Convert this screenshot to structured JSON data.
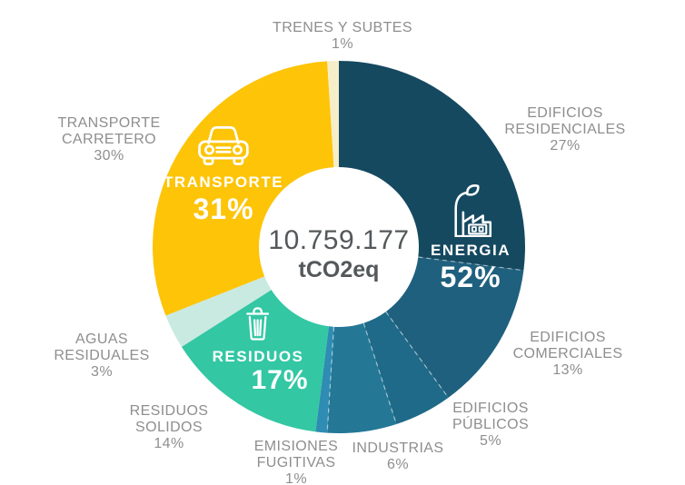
{
  "page": {
    "background": "#ffffff"
  },
  "chart_data": {
    "type": "pie",
    "subtype": "donut",
    "direction": "clockwise",
    "start_angle_deg": 0,
    "label_color": "#8e8e8e",
    "center_label": {
      "value": "10.759.177",
      "unit": "tCO2eq"
    },
    "groups": [
      {
        "name": "ENERGIA",
        "pct": "52%",
        "value": 52,
        "icon": "factory-leaf-icon",
        "label_text_color": "#ffffff",
        "dashed_separators": true,
        "segments": [
          {
            "label": "EDIFICIOS RESIDENCIALES",
            "pct": "27%",
            "value": 27,
            "color": "#154960"
          },
          {
            "label": "EDIFICIOS COMERCIALES",
            "pct": "13%",
            "value": 13,
            "color": "#1f607e"
          },
          {
            "label": "EDIFICIOS PÚBLICOS",
            "pct": "5%",
            "value": 5,
            "color": "#1e6a88"
          },
          {
            "label": "INDUSTRIAS",
            "pct": "6%",
            "value": 6,
            "color": "#247896"
          },
          {
            "label": "EMISIONES FUGITIVAS",
            "pct": "1%",
            "value": 1,
            "color": "#2f8cb2"
          }
        ]
      },
      {
        "name": "RESIDUOS",
        "pct": "17%",
        "value": 17,
        "icon": "trash-icon",
        "label_text_color": "#ffffff",
        "dashed_separators": false,
        "segments": [
          {
            "label": "RESIDUOS SOLIDOS",
            "pct": "14%",
            "value": 14,
            "color": "#33c7a4"
          },
          {
            "label": "AGUAS RESIDUALES",
            "pct": "3%",
            "value": 3,
            "color": "#c9eae0"
          }
        ]
      },
      {
        "name": "TRANSPORTE",
        "pct": "31%",
        "value": 31,
        "icon": "car-icon",
        "label_text_color": "#ffffff",
        "dashed_separators": false,
        "segments": [
          {
            "label": "TRANSPORTE CARRETERO",
            "pct": "30%",
            "value": 30,
            "color": "#fdc408"
          },
          {
            "label": "TRENES Y SUBTES",
            "pct": "1%",
            "value": 1,
            "color": "#f5eec9"
          }
        ]
      }
    ]
  }
}
